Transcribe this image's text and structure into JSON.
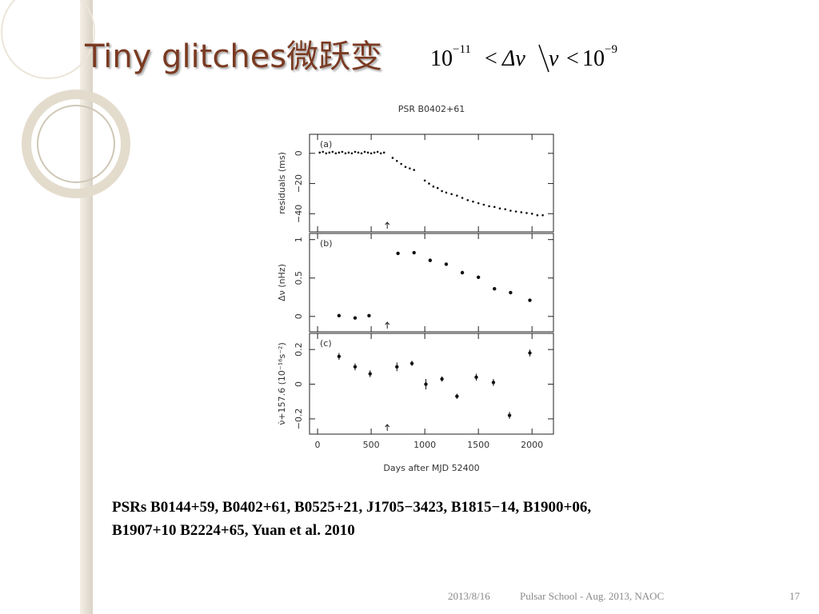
{
  "slide": {
    "title": "Tiny glitches微跃变",
    "formula": {
      "lhs_base": "10",
      "lhs_exp": "−11",
      "op1": "<",
      "num": "Δν",
      "den": "ν",
      "op2": "<",
      "rhs_base": "10",
      "rhs_exp": "−9"
    },
    "caption": [
      "PSRs B0144+59, B0402+61, B0525+21, J1705−3423, B1815−14, B1900+06,",
      "B1907+10 B2224+65,  Yuan et al. 2010"
    ],
    "footer": {
      "date": "2013/8/16",
      "event": "Pulsar School  - Aug. 2013, NAOC",
      "page": "17"
    }
  },
  "chart_data": [
    {
      "type": "scatter",
      "title": "PSR B0402+61",
      "panel_label": "(a)",
      "ylabel": "residuals (ms)",
      "color": "#111111",
      "annotation_x": 650,
      "x": [
        20,
        50,
        80,
        110,
        140,
        170,
        200,
        230,
        260,
        290,
        320,
        350,
        380,
        410,
        440,
        470,
        500,
        530,
        560,
        590,
        620,
        700,
        740,
        780,
        820,
        860,
        900,
        1000,
        1040,
        1080,
        1120,
        1160,
        1200,
        1250,
        1300,
        1350,
        1400,
        1450,
        1500,
        1550,
        1600,
        1650,
        1700,
        1750,
        1800,
        1850,
        1900,
        1950,
        2000,
        2050,
        2100
      ],
      "values": [
        0.5,
        1,
        0,
        0.5,
        1,
        0,
        0.5,
        1,
        0,
        0.5,
        0,
        1,
        0.5,
        0,
        1,
        0.5,
        0,
        0.5,
        1,
        0,
        0.5,
        -3,
        -5,
        -7,
        -9,
        -10,
        -11,
        -18,
        -20,
        -22,
        -23,
        -25,
        -26,
        -27,
        -28,
        -29.5,
        -31,
        -32,
        -33,
        -34,
        -35,
        -35.5,
        -36.5,
        -37,
        -38,
        -38.5,
        -39,
        -39.5,
        -40,
        -41,
        -41
      ],
      "xlim": [
        -75,
        2200
      ],
      "xticks": [
        0,
        500,
        1000,
        1500,
        2000
      ],
      "ylim": [
        -52,
        12.6
      ],
      "yticks": [
        0,
        {
          "value": -20,
          "label": "−20"
        },
        {
          "value": -40,
          "label": "−40"
        }
      ]
    },
    {
      "type": "scatter",
      "panel_label": "(b)",
      "ylabel": "Δν (nHz)",
      "color": "#111111",
      "annotation_x": 650,
      "x": [
        200,
        350,
        480,
        750,
        900,
        1050,
        1200,
        1350,
        1500,
        1650,
        1800,
        1980
      ],
      "values": [
        0.01,
        -0.02,
        0.01,
        0.82,
        0.83,
        0.73,
        0.68,
        0.57,
        0.51,
        0.36,
        0.31,
        0.21
      ],
      "xlim": [
        -75,
        2200
      ],
      "xticks": [
        0,
        500,
        1000,
        1500,
        2000
      ],
      "ylim": [
        -0.2,
        1.08
      ],
      "yticks": [
        0,
        0.5,
        1
      ]
    },
    {
      "type": "errorbar",
      "panel_label": "(c)",
      "ylabel": "ν̇+157.6 (10⁻¹⁶s⁻²)",
      "xlabel": "Days after MJD 52400",
      "color": "#111111",
      "annotation_x": 650,
      "x": [
        200,
        350,
        490,
        740,
        880,
        1010,
        1160,
        1300,
        1480,
        1640,
        1790,
        1980
      ],
      "values": [
        0.16,
        0.1,
        0.06,
        0.1,
        0.12,
        0.0,
        0.03,
        -0.07,
        0.04,
        0.01,
        -0.18,
        0.18
      ],
      "errors": [
        0.02,
        0.02,
        0.02,
        0.025,
        0.015,
        0.03,
        0.015,
        0.015,
        0.02,
        0.02,
        0.02,
        0.02
      ],
      "xlim": [
        -75,
        2200
      ],
      "xticks": [
        0,
        500,
        1000,
        1500,
        2000
      ],
      "ylim": [
        -0.288,
        0.293
      ],
      "yticks": [
        {
          "value": -0.2,
          "label": "−0.2"
        },
        0,
        0.2
      ]
    }
  ]
}
